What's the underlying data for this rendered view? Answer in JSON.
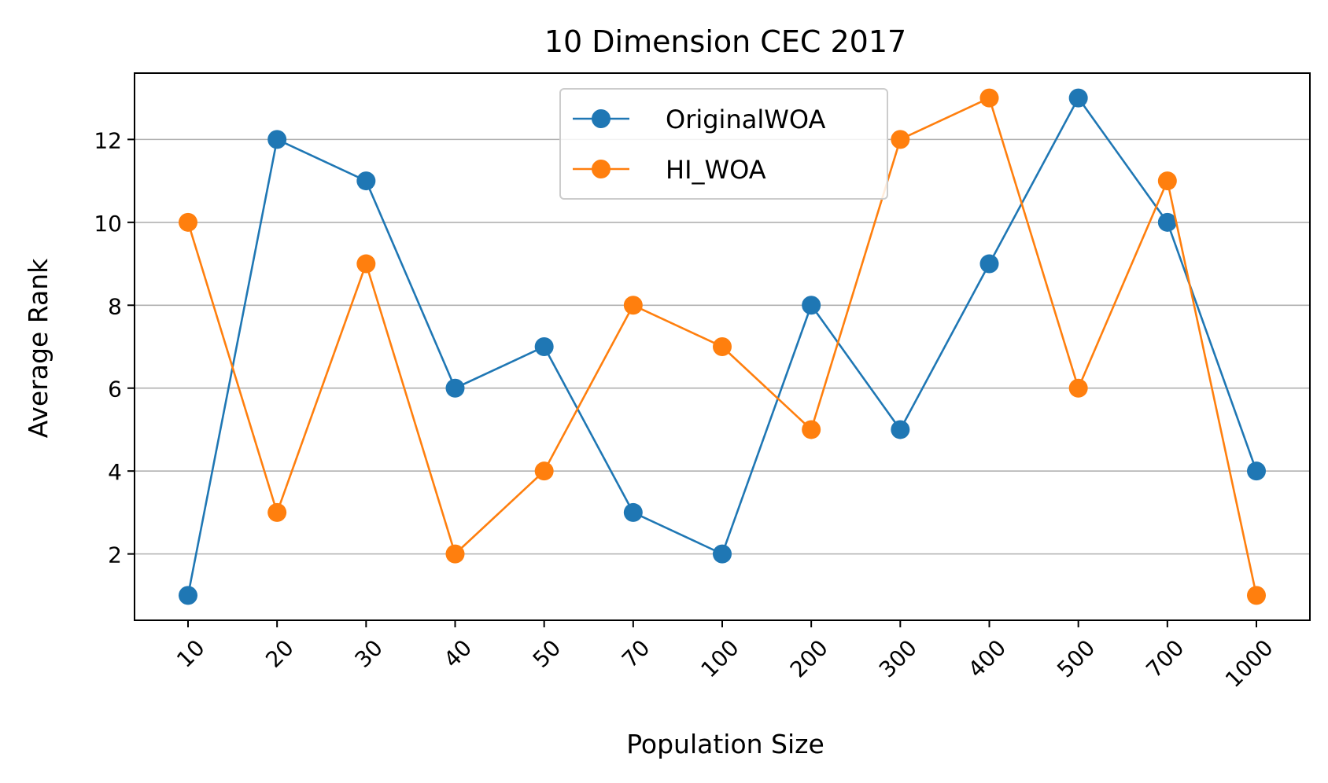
{
  "chart_data": {
    "type": "line",
    "title": "10 Dimension CEC 2017",
    "xlabel": "Population Size",
    "ylabel": "Average Rank",
    "categories": [
      "10",
      "20",
      "30",
      "40",
      "50",
      "70",
      "100",
      "200",
      "300",
      "400",
      "500",
      "700",
      "1000"
    ],
    "ylim": [
      0.4,
      13.6
    ],
    "yticks": [
      2,
      4,
      6,
      8,
      10,
      12
    ],
    "grid": "horizontal",
    "legend_position": "top-center",
    "series": [
      {
        "name": "OriginalWOA",
        "color": "#1f77b4",
        "marker": "circle",
        "values": [
          1,
          12,
          11,
          6,
          7,
          3,
          2,
          8,
          5,
          9,
          13,
          10,
          4
        ]
      },
      {
        "name": "HI_WOA",
        "color": "#ff7f0e",
        "marker": "circle",
        "values": [
          10,
          3,
          9,
          2,
          4,
          8,
          7,
          5,
          12,
          13,
          6,
          11,
          1
        ]
      }
    ]
  }
}
